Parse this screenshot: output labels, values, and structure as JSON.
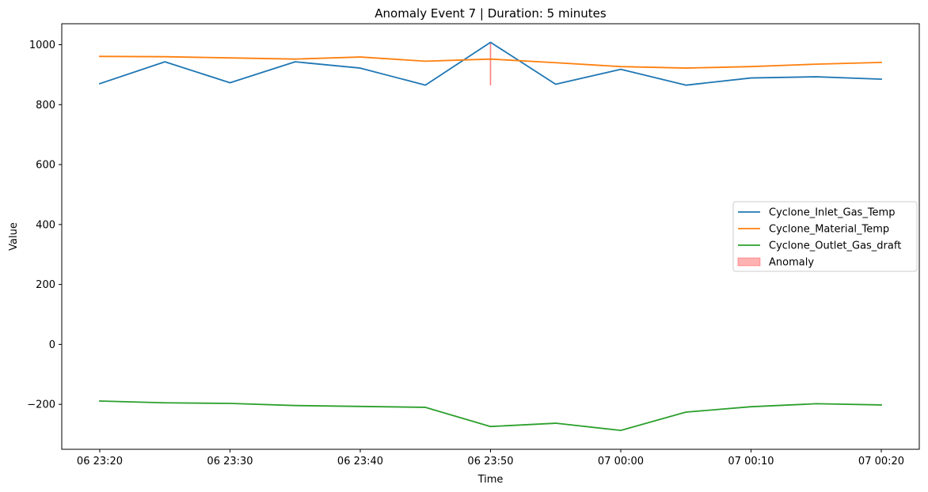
{
  "chart_data": {
    "type": "line",
    "title": "Anomaly Event 7 | Duration: 5 minutes",
    "xlabel": "Time",
    "ylabel": "Value",
    "x": [
      "06 23:20",
      "06 23:25",
      "06 23:30",
      "06 23:35",
      "06 23:40",
      "06 23:45",
      "06 23:50",
      "06 23:55",
      "07 00:00",
      "07 00:05",
      "07 00:10",
      "07 00:15",
      "07 00:20"
    ],
    "x_ticks": [
      "06 23:20",
      "06 23:30",
      "06 23:40",
      "06 23:50",
      "07 00:00",
      "07 00:10",
      "07 00:20"
    ],
    "y_ticks": [
      -200,
      0,
      200,
      400,
      600,
      800,
      1000
    ],
    "ylim": [
      -350,
      1070
    ],
    "series": [
      {
        "name": "Cyclone_Inlet_Gas_Temp",
        "color": "#1f77b4",
        "values": [
          870,
          943,
          873,
          943,
          922,
          865,
          1008,
          868,
          918,
          865,
          889,
          893,
          885
        ]
      },
      {
        "name": "Cyclone_Material_Temp",
        "color": "#ff7f0e",
        "values": [
          961,
          960,
          956,
          952,
          959,
          945,
          952,
          940,
          927,
          922,
          927,
          935,
          941
        ]
      },
      {
        "name": "Cyclone_Outlet_Gas_draft",
        "color": "#2ca02c",
        "values": [
          -189,
          -195,
          -197,
          -204,
          -207,
          -210,
          -274,
          -263,
          -287,
          -226,
          -208,
          -198,
          -202
        ]
      }
    ],
    "anomaly": {
      "name": "Anomaly",
      "color": "#ff0000",
      "start": "06 23:50",
      "end": "06 23:50",
      "y_range": [
        865,
        1008
      ]
    },
    "legend": {
      "position": "center-right",
      "entries": [
        "Cyclone_Inlet_Gas_Temp",
        "Cyclone_Material_Temp",
        "Cyclone_Outlet_Gas_draft",
        "Anomaly"
      ]
    },
    "grid": false
  }
}
